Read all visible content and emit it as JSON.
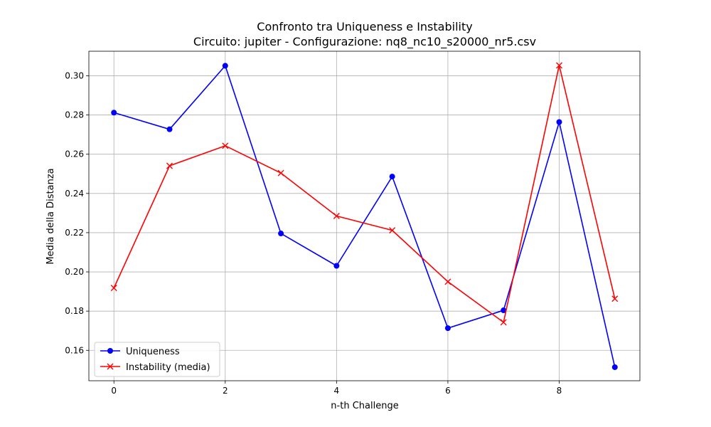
{
  "chart_data": {
    "type": "line",
    "title": "Confronto tra Uniqueness e Instability",
    "subtitle": "Circuito: jupiter - Configurazione: nq8_nc10_s20000_nr5.csv",
    "xlabel": "n-th Challenge",
    "ylabel": "Media della Distanza",
    "x": [
      0,
      1,
      2,
      3,
      4,
      5,
      6,
      7,
      8,
      9
    ],
    "xlim": [
      -0.45,
      9.45
    ],
    "ylim": [
      0.1445,
      0.3125
    ],
    "xticks": [
      0,
      2,
      4,
      6,
      8
    ],
    "xtick_labels": [
      "0",
      "2",
      "4",
      "6",
      "8"
    ],
    "yticks": [
      0.16,
      0.18,
      0.2,
      0.22,
      0.24,
      0.26,
      0.28,
      0.3
    ],
    "ytick_labels": [
      "0.16",
      "0.18",
      "0.20",
      "0.22",
      "0.24",
      "0.26",
      "0.28",
      "0.30"
    ],
    "grid": true,
    "legend_position": "lower-left",
    "series": [
      {
        "name": "Uniqueness",
        "color": "#0000ff",
        "marker": "circle",
        "values": [
          0.2812,
          0.2727,
          0.3051,
          0.2196,
          0.2031,
          0.2486,
          0.1713,
          0.1804,
          0.2764,
          0.1514
        ]
      },
      {
        "name": "Instability (media)",
        "color": "#ff0000",
        "marker": "x",
        "values": [
          0.1918,
          0.2541,
          0.2643,
          0.2504,
          0.2285,
          0.2212,
          0.195,
          0.1743,
          0.3053,
          0.1863
        ]
      }
    ]
  }
}
